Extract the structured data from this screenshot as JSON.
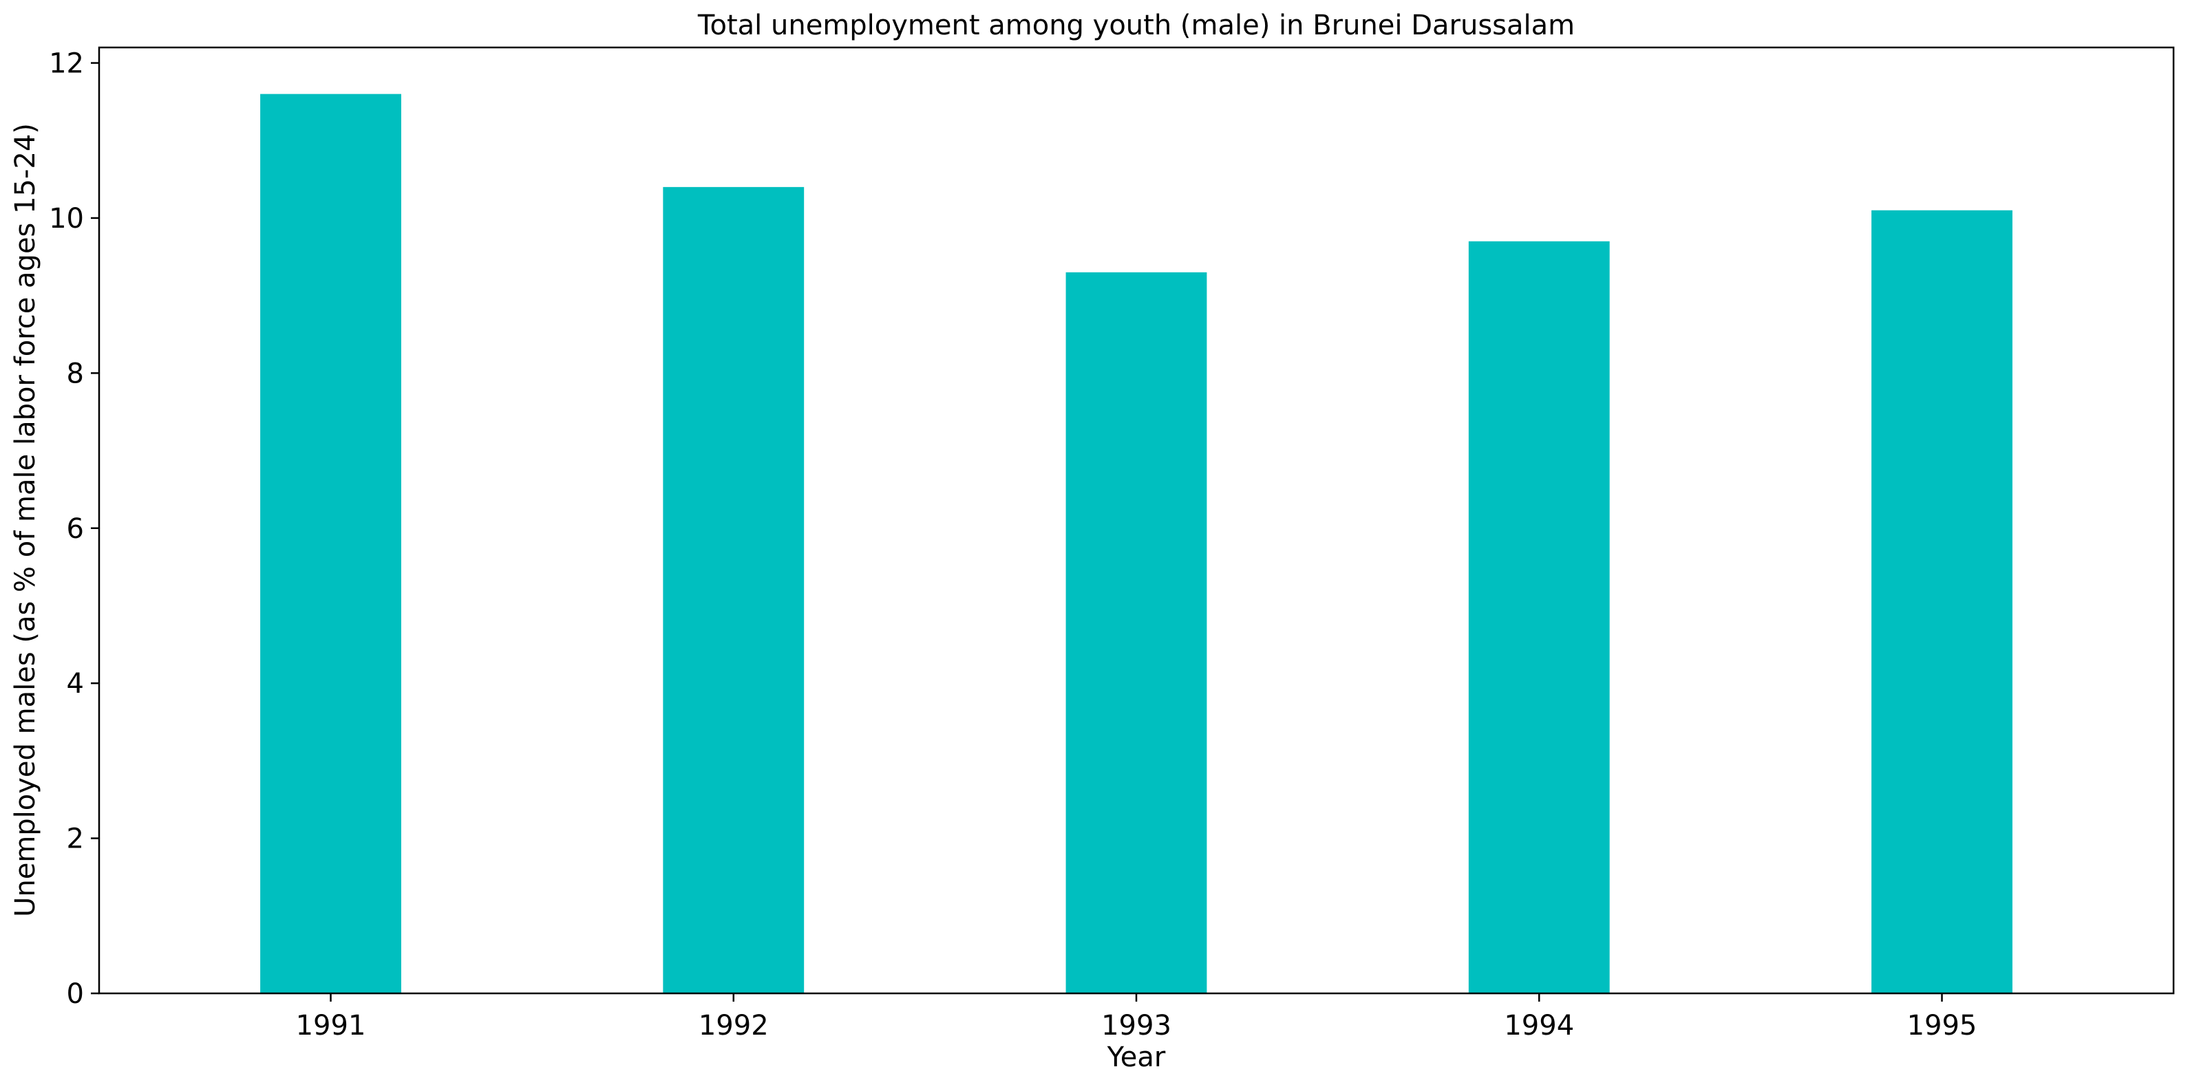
{
  "chart_data": {
    "type": "bar",
    "title": "Total unemployment among youth (male) in Brunei Darussalam",
    "xlabel": "Year",
    "ylabel": "Unemployed males (as % of male labor force ages 15-24)",
    "categories": [
      "1991",
      "1992",
      "1993",
      "1994",
      "1995"
    ],
    "values": [
      11.6,
      10.4,
      9.3,
      9.7,
      10.1
    ],
    "ylim": [
      0,
      12.2
    ],
    "yticks": [
      0,
      2,
      4,
      6,
      8,
      10,
      12
    ],
    "grid": false,
    "legend": "none",
    "bar_color": "#00bfbf"
  }
}
